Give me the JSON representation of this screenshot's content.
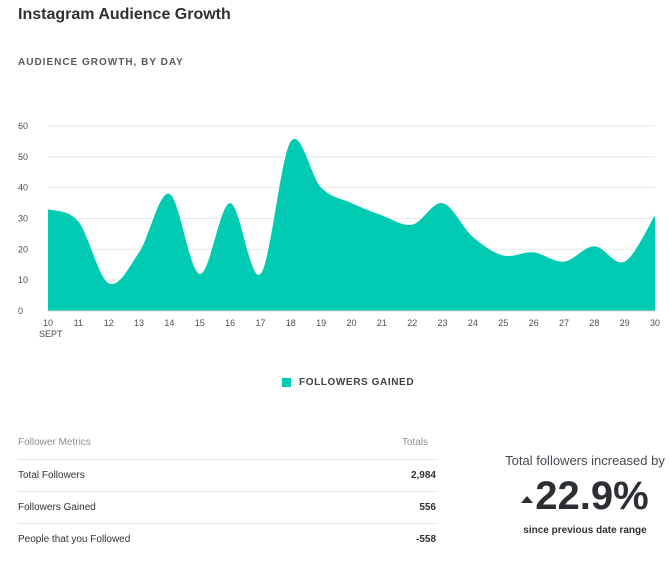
{
  "page": {
    "title": "Instagram Audience Growth",
    "section_title": "AUDIENCE GROWTH, BY DAY"
  },
  "chart_data": {
    "type": "area",
    "x": [
      "10",
      "11",
      "12",
      "13",
      "14",
      "15",
      "16",
      "17",
      "18",
      "19",
      "20",
      "21",
      "22",
      "23",
      "24",
      "25",
      "26",
      "27",
      "28",
      "29",
      "30"
    ],
    "x_sublabel": "SEPT",
    "series": [
      {
        "name": "FOLLOWERS GAINED",
        "color": "#00cbb2",
        "values": [
          33,
          29,
          9,
          19,
          38,
          12,
          35,
          12,
          55,
          40,
          35,
          31,
          28,
          35,
          24,
          18,
          19,
          16,
          21,
          16,
          31
        ]
      }
    ],
    "ylim": [
      0,
      60
    ],
    "yticks": [
      0,
      10,
      20,
      30,
      40,
      50,
      60
    ],
    "grid": true,
    "legend_position": "bottom-center"
  },
  "metrics": {
    "header_label": "Follower Metrics",
    "header_totals": "Totals",
    "rows": [
      {
        "label": "Total Followers",
        "value": "2,984"
      },
      {
        "label": "Followers Gained",
        "value": "556"
      },
      {
        "label": "People that you Followed",
        "value": "-558"
      }
    ]
  },
  "summary": {
    "caption": "Total followers increased by",
    "value": "22.9%",
    "subtext": "since previous date range",
    "icon": "triangle-up-icon"
  }
}
